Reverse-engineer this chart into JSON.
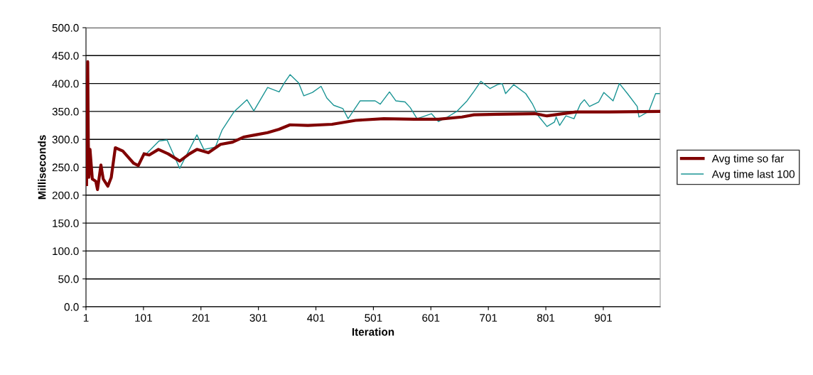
{
  "chart_data": {
    "type": "line",
    "xlabel": "Iteration",
    "ylabel": "Milliseconds",
    "xlim": [
      1,
      1000
    ],
    "xticks": [
      1,
      101,
      201,
      301,
      401,
      501,
      601,
      701,
      801,
      901
    ],
    "ylim": [
      0,
      500
    ],
    "yticks": [
      {
        "value": 0,
        "label": "0.0"
      },
      {
        "value": 50,
        "label": "50.0"
      },
      {
        "value": 100,
        "label": "100.0"
      },
      {
        "value": 150,
        "label": "150.0"
      },
      {
        "value": 200,
        "label": "200.0"
      },
      {
        "value": 250,
        "label": "250.0"
      },
      {
        "value": 300,
        "label": "300.0"
      },
      {
        "value": 350,
        "label": "350.0"
      },
      {
        "value": 400,
        "label": "400.0"
      },
      {
        "value": 450,
        "label": "450.0"
      },
      {
        "value": 500,
        "label": "500.0"
      }
    ],
    "grid": "y",
    "legend": "right",
    "series": [
      {
        "name": "Avg time so far",
        "color": "#800000",
        "x": [
          2,
          4,
          5,
          6,
          8,
          12,
          18,
          21,
          27,
          31,
          39,
          45,
          52,
          65,
          84,
          92,
          102,
          111,
          127,
          144,
          164,
          181,
          194,
          214,
          235,
          256,
          275,
          296,
          317,
          337,
          356,
          387,
          429,
          470,
          519,
          572,
          614,
          655,
          676,
          717,
          782,
          803,
          853,
          911,
          999
        ],
        "values": [
          219,
          439,
          299,
          232,
          282,
          229,
          225,
          210,
          254,
          229,
          216,
          232,
          285,
          279,
          257,
          253,
          274,
          272,
          282,
          274,
          261,
          274,
          282,
          276,
          291,
          295,
          304,
          308,
          312,
          318,
          326,
          325,
          327,
          334,
          337,
          336,
          336,
          340,
          344,
          345,
          346,
          342,
          349,
          349,
          350
        ]
      },
      {
        "name": "Avg time last 100",
        "color": "#1a9494",
        "x": [
          101,
          105,
          128,
          142,
          164,
          194,
          206,
          226,
          238,
          259,
          281,
          293,
          317,
          337,
          346,
          356,
          371,
          380,
          395,
          410,
          420,
          432,
          448,
          457,
          478,
          504,
          513,
          529,
          540,
          556,
          565,
          577,
          602,
          614,
          630,
          646,
          664,
          676,
          688,
          704,
          717,
          725,
          731,
          745,
          766,
          778,
          788,
          803,
          816,
          819,
          825,
          836,
          850,
          861,
          868,
          877,
          893,
          902,
          918,
          929,
          943,
          960,
          963,
          980,
          992,
          999
        ],
        "values": [
          276,
          273,
          297,
          299,
          248,
          308,
          282,
          286,
          317,
          350,
          371,
          351,
          393,
          385,
          401,
          416,
          401,
          378,
          384,
          395,
          374,
          361,
          355,
          337,
          369,
          369,
          363,
          385,
          369,
          367,
          357,
          337,
          346,
          332,
          340,
          350,
          369,
          386,
          404,
          391,
          398,
          400,
          382,
          398,
          382,
          363,
          342,
          323,
          331,
          340,
          325,
          342,
          337,
          363,
          371,
          359,
          367,
          384,
          369,
          400,
          382,
          359,
          340,
          350,
          382,
          382
        ]
      }
    ]
  }
}
